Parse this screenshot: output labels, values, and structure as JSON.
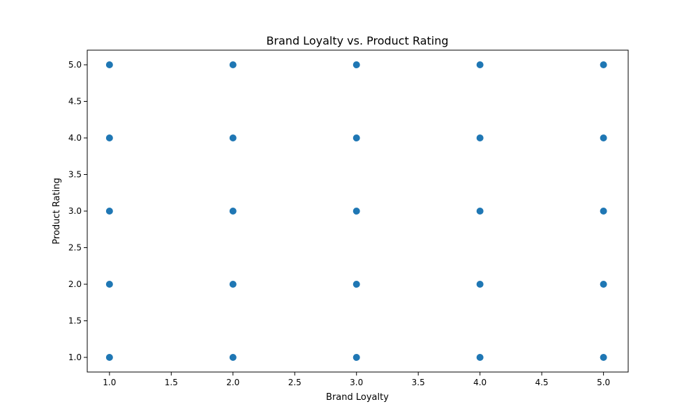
{
  "chart_data": {
    "type": "scatter",
    "title": "Brand Loyalty vs. Product Rating",
    "xlabel": "Brand Loyalty",
    "ylabel": "Product Rating",
    "xlim": [
      0.82,
      5.2
    ],
    "ylim": [
      0.8,
      5.2
    ],
    "xticks": [
      1.0,
      1.5,
      2.0,
      2.5,
      3.0,
      3.5,
      4.0,
      4.5,
      5.0
    ],
    "yticks": [
      1.0,
      1.5,
      2.0,
      2.5,
      3.0,
      3.5,
      4.0,
      4.5,
      5.0
    ],
    "tick_format_decimals": 1,
    "grid": false,
    "series": [
      {
        "name": "ratings",
        "color": "#1f77b4",
        "points": [
          {
            "x": 1,
            "y": 1
          },
          {
            "x": 1,
            "y": 2
          },
          {
            "x": 1,
            "y": 3
          },
          {
            "x": 1,
            "y": 4
          },
          {
            "x": 1,
            "y": 5
          },
          {
            "x": 2,
            "y": 1
          },
          {
            "x": 2,
            "y": 2
          },
          {
            "x": 2,
            "y": 3
          },
          {
            "x": 2,
            "y": 4
          },
          {
            "x": 2,
            "y": 5
          },
          {
            "x": 3,
            "y": 1
          },
          {
            "x": 3,
            "y": 2
          },
          {
            "x": 3,
            "y": 3
          },
          {
            "x": 3,
            "y": 4
          },
          {
            "x": 3,
            "y": 5
          },
          {
            "x": 4,
            "y": 1
          },
          {
            "x": 4,
            "y": 2
          },
          {
            "x": 4,
            "y": 3
          },
          {
            "x": 4,
            "y": 4
          },
          {
            "x": 4,
            "y": 5
          },
          {
            "x": 5,
            "y": 1
          },
          {
            "x": 5,
            "y": 2
          },
          {
            "x": 5,
            "y": 3
          },
          {
            "x": 5,
            "y": 4
          },
          {
            "x": 5,
            "y": 5
          }
        ]
      }
    ]
  }
}
